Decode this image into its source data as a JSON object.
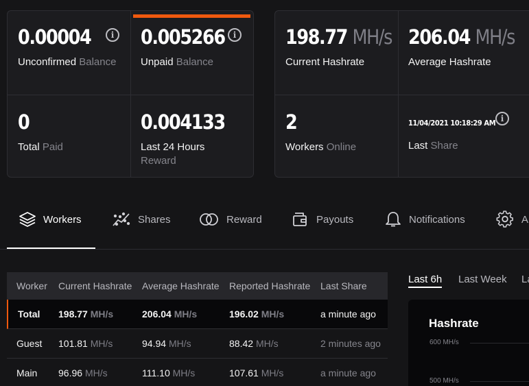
{
  "stats_left": {
    "unconfirmed": {
      "value": "0.00004",
      "label": "Unconfirmed",
      "label_dim": "Balance"
    },
    "unpaid": {
      "value": "0.005266",
      "label": "Unpaid",
      "label_dim": "Balance"
    },
    "total_paid": {
      "value": "0",
      "label": "Total",
      "label_dim": "Paid"
    },
    "last24": {
      "value": "0.004133",
      "label": "Last 24 Hours",
      "sublabel": "Reward"
    }
  },
  "stats_right": {
    "current_hashrate": {
      "value": "198.77",
      "unit": "MH/s",
      "label": "Current Hashrate"
    },
    "average_hashrate": {
      "value": "206.04",
      "unit": "MH/s",
      "label": "Average Hashrate"
    },
    "workers": {
      "value": "2",
      "label": "Workers",
      "label_dim": "Online"
    },
    "last_share": {
      "value": "11/04/2021 10:18:29 AM",
      "label": "Last",
      "label_dim": "Share"
    }
  },
  "tabs": [
    {
      "label": "Workers",
      "icon": "layers-icon",
      "active": true
    },
    {
      "label": "Shares",
      "icon": "scatter-icon"
    },
    {
      "label": "Reward",
      "icon": "coins-icon"
    },
    {
      "label": "Payouts",
      "icon": "wallet-icon"
    },
    {
      "label": "Notifications",
      "icon": "bell-icon"
    },
    {
      "label": "A",
      "icon": "gear-icon"
    }
  ],
  "table": {
    "headers": [
      "Worker",
      "Current Hashrate",
      "Average Hashrate",
      "Reported Hashrate",
      "Last Share"
    ],
    "unit": "MH/s",
    "rows": [
      {
        "worker": "Total",
        "current": "198.77",
        "average": "206.04",
        "reported": "196.02",
        "last_share": "a minute ago"
      },
      {
        "worker": "Guest",
        "current": "101.81",
        "average": "94.94",
        "reported": "88.42",
        "last_share": "2 minutes ago"
      },
      {
        "worker": "Main",
        "current": "96.96",
        "average": "111.10",
        "reported": "107.61",
        "last_share": "a minute ago"
      }
    ]
  },
  "periods": [
    "Last 6h",
    "Last Week",
    "La"
  ],
  "chart": {
    "title": "Hashrate",
    "yticks": [
      "600 MH/s",
      "500 MH/s"
    ]
  },
  "colors": {
    "accent": "#f0590e",
    "background": "#151517",
    "card": "#1c1c1f"
  }
}
